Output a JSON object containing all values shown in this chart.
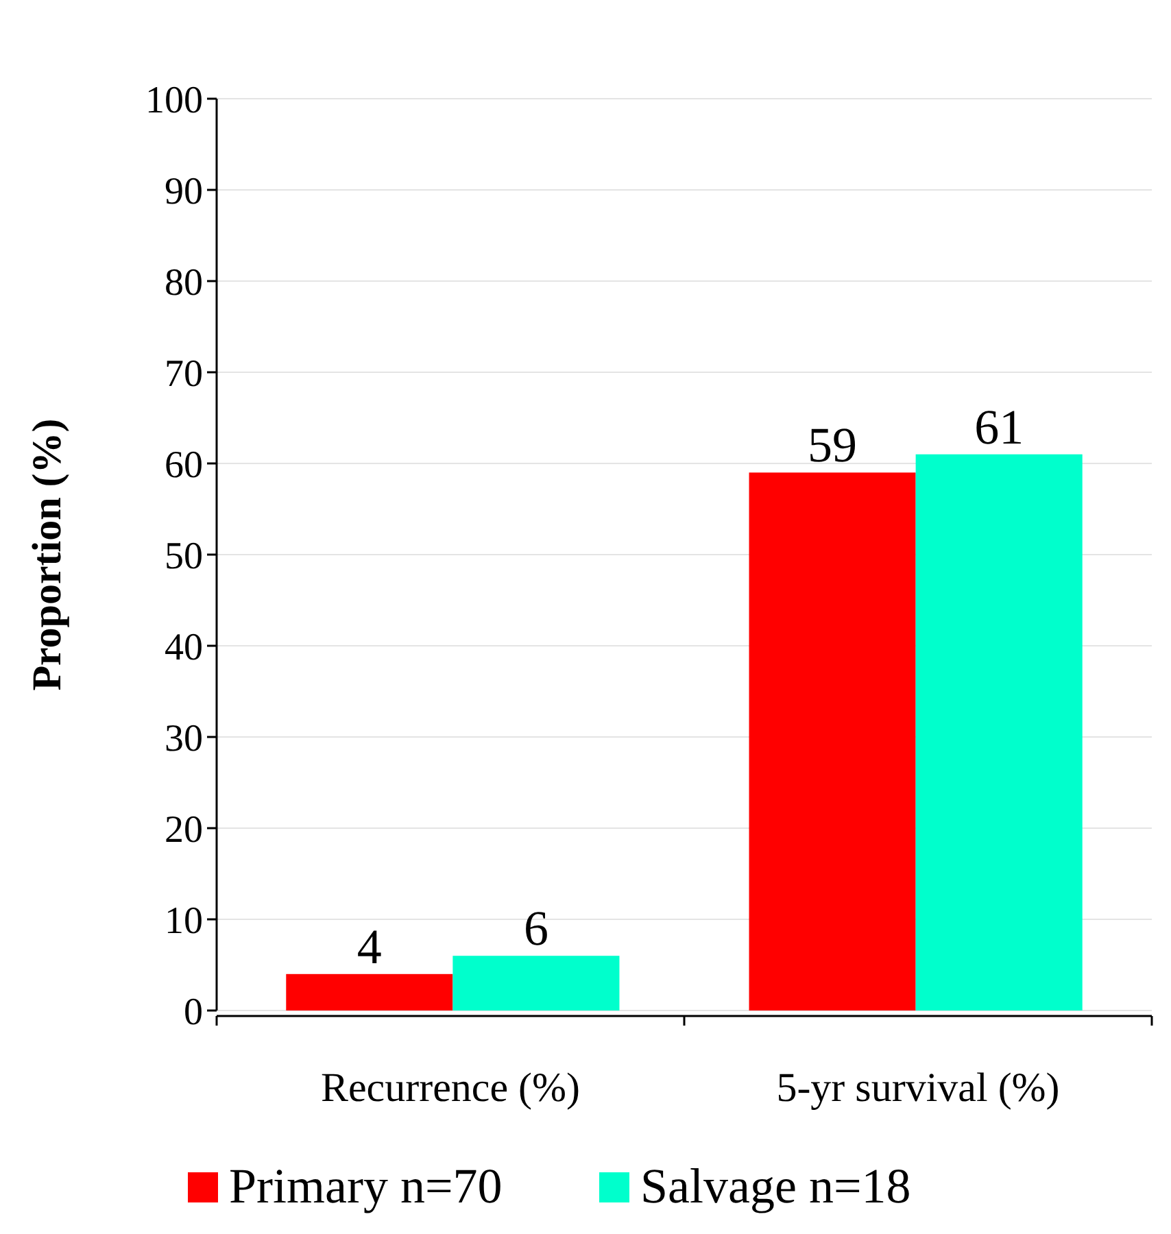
{
  "chart_data": {
    "type": "bar",
    "ylabel": "Proportion (%)",
    "categories": [
      "Recurrence (%)",
      "5-yr survival (%)"
    ],
    "series": [
      {
        "name": "Primary n=70",
        "color": "#ff0000",
        "values": [
          4,
          59
        ]
      },
      {
        "name": "Salvage n=18",
        "color": "#00ffcc",
        "values": [
          6,
          61
        ]
      }
    ],
    "ylim": [
      0,
      100
    ],
    "yticks": [
      0,
      10,
      20,
      30,
      40,
      50,
      60,
      70,
      80,
      90,
      100
    ],
    "grid": "y",
    "data_labels": true,
    "legend": "bottom"
  }
}
